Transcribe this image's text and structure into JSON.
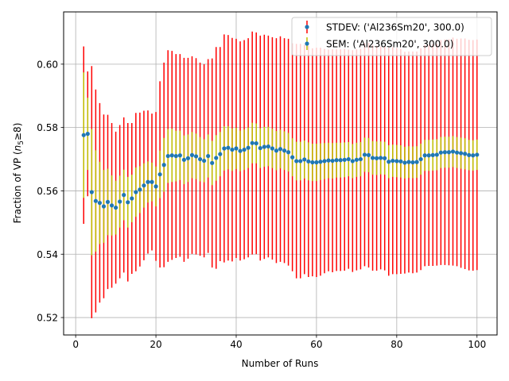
{
  "chart_data": {
    "type": "scatter",
    "xlabel": "Number of Runs",
    "ylabel_parts": {
      "prefix": "Fraction of VP (",
      "var": "n",
      "sub": "5",
      "suffix": "≥8)"
    },
    "xlim": [
      -3,
      105
    ],
    "ylim": [
      0.5145,
      0.6165
    ],
    "xticks": [
      0,
      20,
      40,
      60,
      80,
      100
    ],
    "yticks": [
      0.52,
      0.54,
      0.56,
      0.58,
      0.6
    ],
    "ytick_labels": [
      "0.52",
      "0.54",
      "0.56",
      "0.58",
      "0.60"
    ],
    "grid": true,
    "legend_position": "top-right",
    "x": [
      2,
      3,
      4,
      5,
      6,
      7,
      8,
      9,
      10,
      11,
      12,
      13,
      14,
      15,
      16,
      17,
      18,
      19,
      20,
      21,
      22,
      23,
      24,
      25,
      26,
      27,
      28,
      29,
      30,
      31,
      32,
      33,
      34,
      35,
      36,
      37,
      38,
      39,
      40,
      41,
      42,
      43,
      44,
      45,
      46,
      47,
      48,
      49,
      50,
      51,
      52,
      53,
      54,
      55,
      56,
      57,
      58,
      59,
      60,
      61,
      62,
      63,
      64,
      65,
      66,
      67,
      68,
      69,
      70,
      71,
      72,
      73,
      74,
      75,
      76,
      77,
      78,
      79,
      80,
      81,
      82,
      83,
      84,
      85,
      86,
      87,
      88,
      89,
      90,
      91,
      92,
      93,
      94,
      95,
      96,
      97,
      98,
      99,
      100
    ],
    "y": [
      0.5776,
      0.578,
      0.5596,
      0.5568,
      0.5562,
      0.5551,
      0.5565,
      0.5554,
      0.5547,
      0.5566,
      0.5587,
      0.5564,
      0.5576,
      0.5596,
      0.5604,
      0.5617,
      0.5628,
      0.5628,
      0.5614,
      0.5652,
      0.5682,
      0.571,
      0.5712,
      0.571,
      0.5712,
      0.5698,
      0.5703,
      0.5713,
      0.5709,
      0.57,
      0.5695,
      0.571,
      0.5688,
      0.5704,
      0.5716,
      0.5734,
      0.5736,
      0.573,
      0.5734,
      0.5726,
      0.573,
      0.5736,
      0.5751,
      0.575,
      0.5735,
      0.5739,
      0.574,
      0.5734,
      0.5727,
      0.5732,
      0.5727,
      0.5722,
      0.5706,
      0.5694,
      0.5694,
      0.5699,
      0.5693,
      0.569,
      0.569,
      0.5692,
      0.5694,
      0.5696,
      0.5695,
      0.5697,
      0.5697,
      0.5698,
      0.57,
      0.5694,
      0.5698,
      0.57,
      0.5714,
      0.5713,
      0.5704,
      0.5703,
      0.5704,
      0.5703,
      0.5692,
      0.5695,
      0.5694,
      0.5693,
      0.5689,
      0.5691,
      0.569,
      0.5691,
      0.57,
      0.5712,
      0.5712,
      0.5713,
      0.5714,
      0.5721,
      0.5722,
      0.5722,
      0.5724,
      0.5721,
      0.5719,
      0.5717,
      0.5713,
      0.5712,
      0.5714
    ],
    "series": [
      {
        "name": "STDEV: ('Al236Sm20', 300.0)",
        "color": "#ff0000",
        "errors": [
          0.028,
          0.0197,
          0.0398,
          0.0352,
          0.0315,
          0.029,
          0.0275,
          0.026,
          0.024,
          0.0242,
          0.0245,
          0.025,
          0.0238,
          0.025,
          0.0243,
          0.0236,
          0.0226,
          0.0216,
          0.0235,
          0.0294,
          0.0323,
          0.0334,
          0.033,
          0.0322,
          0.032,
          0.0322,
          0.0317,
          0.0312,
          0.031,
          0.0305,
          0.0305,
          0.0306,
          0.033,
          0.035,
          0.0338,
          0.036,
          0.0356,
          0.0353,
          0.0346,
          0.0346,
          0.0346,
          0.0346,
          0.0352,
          0.035,
          0.0355,
          0.0354,
          0.035,
          0.0351,
          0.0355,
          0.0356,
          0.0355,
          0.0358,
          0.036,
          0.037,
          0.037,
          0.0362,
          0.0365,
          0.036,
          0.0362,
          0.036,
          0.0354,
          0.035,
          0.0352,
          0.035,
          0.035,
          0.035,
          0.0346,
          0.035,
          0.0349,
          0.0348,
          0.0352,
          0.0355,
          0.0356,
          0.0355,
          0.0352,
          0.0354,
          0.036,
          0.0358,
          0.0357,
          0.0355,
          0.035,
          0.0349,
          0.035,
          0.0349,
          0.035,
          0.035,
          0.0349,
          0.035,
          0.035,
          0.0355,
          0.0356,
          0.0357,
          0.036,
          0.0359,
          0.0362,
          0.0364,
          0.0364,
          0.0364,
          0.0364
        ]
      },
      {
        "name": "SEM: ('Al236Sm20', 300.0)",
        "color": "#bfbf00",
        "errors": [
          0.0198,
          0.0114,
          0.0199,
          0.016,
          0.013,
          0.0115,
          0.0105,
          0.0095,
          0.0085,
          0.0082,
          0.008,
          0.008,
          0.0075,
          0.0078,
          0.0074,
          0.007,
          0.0065,
          0.0061,
          0.0063,
          0.0075,
          0.0085,
          0.0085,
          0.0084,
          0.008,
          0.0078,
          0.0077,
          0.0075,
          0.0073,
          0.0072,
          0.007,
          0.0068,
          0.0068,
          0.007,
          0.0072,
          0.007,
          0.007,
          0.0068,
          0.0067,
          0.0065,
          0.0064,
          0.0064,
          0.0064,
          0.0064,
          0.0063,
          0.0063,
          0.0063,
          0.0062,
          0.0062,
          0.0062,
          0.0061,
          0.0061,
          0.0061,
          0.006,
          0.0061,
          0.0061,
          0.006,
          0.006,
          0.0059,
          0.0059,
          0.0058,
          0.0057,
          0.0056,
          0.0056,
          0.0055,
          0.0055,
          0.0055,
          0.0054,
          0.0054,
          0.0054,
          0.0054,
          0.0054,
          0.0054,
          0.0053,
          0.0053,
          0.0052,
          0.0052,
          0.0052,
          0.0051,
          0.0051,
          0.0051,
          0.005,
          0.005,
          0.005,
          0.005,
          0.0049,
          0.0049,
          0.0049,
          0.0049,
          0.0049,
          0.0049,
          0.0049,
          0.0049,
          0.0049,
          0.0049,
          0.0049,
          0.0049,
          0.0048,
          0.0048,
          0.0048
        ]
      }
    ],
    "marker_color": "#1f77b4"
  }
}
